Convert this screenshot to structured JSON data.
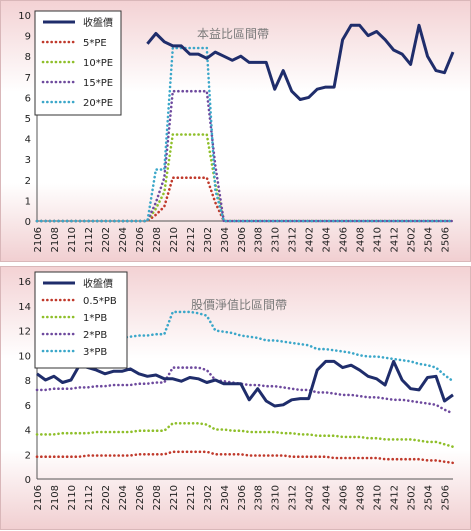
{
  "chart_data": [
    {
      "type": "line",
      "title": "本益比區間帶",
      "legend_position": "top-left",
      "grid": false,
      "ylim": [
        0,
        10
      ],
      "yticks": [
        0,
        1,
        2,
        3,
        4,
        5,
        6,
        7,
        8,
        9,
        10
      ],
      "x": [
        "2106",
        "2107",
        "2108",
        "2109",
        "2110",
        "2111",
        "2112",
        "2201",
        "2202",
        "2203",
        "2204",
        "2205",
        "2206",
        "2207",
        "2208",
        "2209",
        "2210",
        "2211",
        "2212",
        "2301",
        "2302",
        "2303",
        "2304",
        "2305",
        "2306",
        "2307",
        "2308",
        "2309",
        "2310",
        "2311",
        "2312",
        "2401",
        "2402",
        "2403",
        "2404",
        "2405",
        "2406",
        "2407",
        "2408",
        "2409",
        "2410",
        "2411",
        "2412",
        "2501",
        "2502",
        "2503",
        "2504",
        "2505",
        "2506",
        "2507"
      ],
      "xtick_labels": [
        "2106",
        "2108",
        "2110",
        "2112",
        "2202",
        "2204",
        "2206",
        "2208",
        "2210",
        "2212",
        "2302",
        "2304",
        "2306",
        "2308",
        "2310",
        "2312",
        "2402",
        "2404",
        "2406",
        "2408",
        "2410",
        "2412",
        "2502",
        "2504",
        "2506"
      ],
      "series": [
        {
          "name": "收盤價",
          "color": "#1f2d6b",
          "style": "solid",
          "values": [
            null,
            null,
            null,
            null,
            null,
            null,
            null,
            null,
            null,
            null,
            null,
            null,
            null,
            8.6,
            9.1,
            8.7,
            8.5,
            8.5,
            8.1,
            8.1,
            7.9,
            8.2,
            8.0,
            7.8,
            8.0,
            7.7,
            7.7,
            7.7,
            6.4,
            7.3,
            6.3,
            5.9,
            6.0,
            6.4,
            6.5,
            6.5,
            8.8,
            9.5,
            9.5,
            9.0,
            9.2,
            8.8,
            8.3,
            8.1,
            7.6,
            9.5,
            8.0,
            7.3,
            7.2,
            8.2
          ]
        },
        {
          "name": "5*PE",
          "color": "#c0392b",
          "style": "dotted",
          "values": [
            0,
            0,
            0,
            0,
            0,
            0,
            0,
            0,
            0,
            0,
            0,
            0,
            0,
            0,
            0.3,
            0.7,
            2.1,
            2.1,
            2.1,
            2.1,
            2.1,
            0.9,
            0,
            0,
            0,
            0,
            0,
            0,
            0,
            0,
            0,
            0,
            0,
            0,
            0,
            0,
            0,
            0,
            0,
            0,
            0,
            0,
            0,
            0,
            0,
            0,
            0,
            0,
            0,
            0
          ]
        },
        {
          "name": "10*PE",
          "color": "#8fbf2a",
          "style": "dotted",
          "values": [
            0,
            0,
            0,
            0,
            0,
            0,
            0,
            0,
            0,
            0,
            0,
            0,
            0,
            0,
            0.6,
            1.4,
            4.2,
            4.2,
            4.2,
            4.2,
            4.2,
            1.8,
            0,
            0,
            0,
            0,
            0,
            0,
            0,
            0,
            0,
            0,
            0,
            0,
            0,
            0,
            0,
            0,
            0,
            0,
            0,
            0,
            0,
            0,
            0,
            0,
            0,
            0,
            0,
            0
          ]
        },
        {
          "name": "15*PE",
          "color": "#6e4a9e",
          "style": "dotted",
          "values": [
            0,
            0,
            0,
            0,
            0,
            0,
            0,
            0,
            0,
            0,
            0,
            0,
            0,
            0,
            0.9,
            2.1,
            6.3,
            6.3,
            6.3,
            6.3,
            6.3,
            2.7,
            0,
            0,
            0,
            0,
            0,
            0,
            0,
            0,
            0,
            0,
            0,
            0,
            0,
            0,
            0,
            0,
            0,
            0,
            0,
            0,
            0,
            0,
            0,
            0,
            0,
            0,
            0,
            0
          ]
        },
        {
          "name": "20*PE",
          "color": "#3ba7c9",
          "style": "dotted",
          "values": [
            0,
            0,
            0,
            0,
            0,
            0,
            0,
            0,
            0,
            0,
            0,
            0,
            0,
            0,
            2.5,
            2.5,
            8.4,
            8.4,
            8.4,
            8.4,
            8.4,
            1.5,
            0,
            0,
            0,
            0,
            0,
            0,
            0,
            0,
            0,
            0,
            0,
            0,
            0,
            0,
            0,
            0,
            0,
            0,
            0,
            0,
            0,
            0,
            0,
            0,
            0,
            0,
            0,
            0
          ]
        }
      ]
    },
    {
      "type": "line",
      "title": "股價淨值比區間帶",
      "legend_position": "top-left",
      "grid": false,
      "ylim": [
        0,
        16
      ],
      "yticks": [
        0,
        2,
        4,
        6,
        8,
        10,
        12,
        14,
        16
      ],
      "x": [
        "2106",
        "2107",
        "2108",
        "2109",
        "2110",
        "2111",
        "2112",
        "2201",
        "2202",
        "2203",
        "2204",
        "2205",
        "2206",
        "2207",
        "2208",
        "2209",
        "2210",
        "2211",
        "2212",
        "2301",
        "2302",
        "2303",
        "2304",
        "2305",
        "2306",
        "2307",
        "2308",
        "2309",
        "2310",
        "2311",
        "2312",
        "2401",
        "2402",
        "2403",
        "2404",
        "2405",
        "2406",
        "2407",
        "2408",
        "2409",
        "2410",
        "2411",
        "2412",
        "2501",
        "2502",
        "2503",
        "2504",
        "2505",
        "2506",
        "2507"
      ],
      "xtick_labels": [
        "2106",
        "2108",
        "2110",
        "2112",
        "2202",
        "2204",
        "2206",
        "2208",
        "2210",
        "2212",
        "2302",
        "2304",
        "2306",
        "2308",
        "2310",
        "2312",
        "2402",
        "2404",
        "2406",
        "2408",
        "2410",
        "2412",
        "2502",
        "2504",
        "2506"
      ],
      "series": [
        {
          "name": "收盤價",
          "color": "#1f2d6b",
          "style": "solid",
          "values": [
            8.5,
            8.0,
            8.3,
            7.8,
            8.0,
            9.2,
            9.0,
            8.8,
            8.5,
            8.7,
            8.7,
            8.9,
            8.5,
            8.3,
            8.4,
            8.1,
            8.1,
            7.9,
            8.2,
            8.1,
            7.8,
            8.0,
            7.7,
            7.7,
            7.7,
            6.4,
            7.3,
            6.3,
            5.9,
            6.0,
            6.4,
            6.5,
            6.5,
            8.8,
            9.5,
            9.5,
            9.0,
            9.2,
            8.8,
            8.3,
            8.1,
            7.6,
            9.5,
            8.0,
            7.3,
            7.2,
            8.2,
            8.3,
            6.3,
            6.8
          ]
        },
        {
          "name": "0.5*PB",
          "color": "#c0392b",
          "style": "dotted",
          "values": [
            1.8,
            1.8,
            1.8,
            1.8,
            1.8,
            1.8,
            1.9,
            1.9,
            1.9,
            1.9,
            1.9,
            1.9,
            2.0,
            2.0,
            2.0,
            2.0,
            2.2,
            2.2,
            2.2,
            2.2,
            2.2,
            2.0,
            2.0,
            2.0,
            2.0,
            1.9,
            1.9,
            1.9,
            1.9,
            1.9,
            1.8,
            1.8,
            1.8,
            1.8,
            1.8,
            1.7,
            1.7,
            1.7,
            1.7,
            1.7,
            1.7,
            1.6,
            1.6,
            1.6,
            1.6,
            1.6,
            1.5,
            1.5,
            1.4,
            1.3
          ]
        },
        {
          "name": "1*PB",
          "color": "#8fbf2a",
          "style": "dotted",
          "values": [
            3.6,
            3.6,
            3.6,
            3.7,
            3.7,
            3.7,
            3.7,
            3.8,
            3.8,
            3.8,
            3.8,
            3.8,
            3.9,
            3.9,
            3.9,
            3.9,
            4.5,
            4.5,
            4.5,
            4.5,
            4.4,
            4.0,
            4.0,
            3.9,
            3.9,
            3.8,
            3.8,
            3.8,
            3.8,
            3.7,
            3.7,
            3.6,
            3.6,
            3.5,
            3.5,
            3.5,
            3.4,
            3.4,
            3.4,
            3.3,
            3.3,
            3.2,
            3.2,
            3.2,
            3.2,
            3.1,
            3.0,
            3.0,
            2.8,
            2.6
          ]
        },
        {
          "name": "2*PB",
          "color": "#6e4a9e",
          "style": "dotted",
          "values": [
            7.2,
            7.2,
            7.3,
            7.3,
            7.3,
            7.4,
            7.4,
            7.5,
            7.5,
            7.6,
            7.6,
            7.6,
            7.7,
            7.7,
            7.8,
            7.8,
            9.0,
            9.0,
            9.0,
            9.0,
            8.8,
            8.0,
            7.9,
            7.8,
            7.7,
            7.6,
            7.6,
            7.5,
            7.5,
            7.4,
            7.3,
            7.2,
            7.2,
            7.0,
            7.0,
            6.9,
            6.8,
            6.8,
            6.7,
            6.6,
            6.6,
            6.5,
            6.4,
            6.4,
            6.3,
            6.2,
            6.1,
            6.0,
            5.6,
            5.3
          ]
        },
        {
          "name": "3*PB",
          "color": "#3ba7c9",
          "style": "dotted",
          "values": [
            10.8,
            10.8,
            10.9,
            11.0,
            11.0,
            11.1,
            11.1,
            11.2,
            11.3,
            11.3,
            11.4,
            11.5,
            11.6,
            11.6,
            11.7,
            11.7,
            13.5,
            13.5,
            13.5,
            13.4,
            13.2,
            12.0,
            11.9,
            11.8,
            11.6,
            11.5,
            11.4,
            11.2,
            11.2,
            11.1,
            11.0,
            10.9,
            10.8,
            10.5,
            10.5,
            10.4,
            10.3,
            10.2,
            10.0,
            9.9,
            9.9,
            9.8,
            9.7,
            9.6,
            9.5,
            9.3,
            9.2,
            9.0,
            8.4,
            7.9
          ]
        }
      ]
    }
  ]
}
